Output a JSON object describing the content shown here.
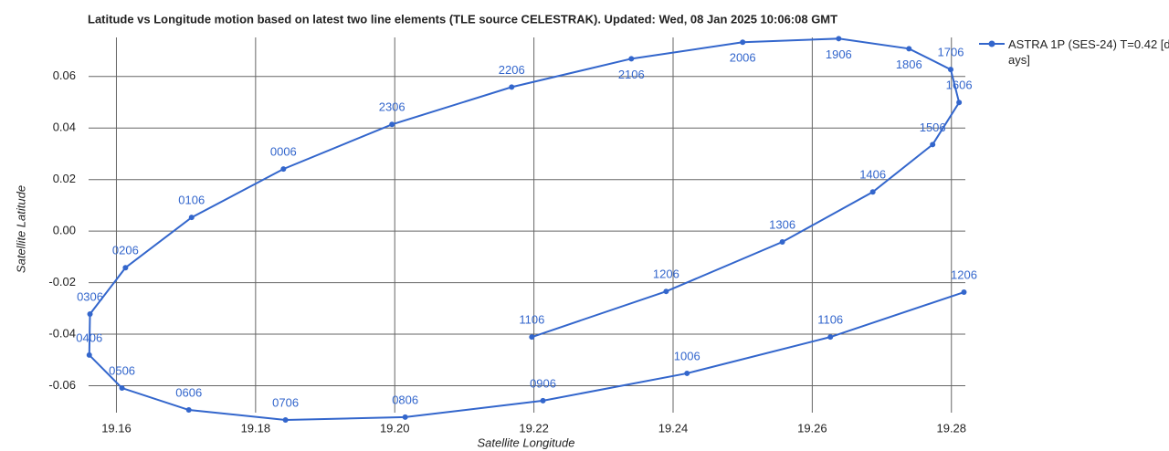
{
  "chart_data": {
    "type": "line",
    "title": "Latitude vs Longitude motion based on latest two line elements (TLE source CELESTRAK). Updated: Wed, 08 Jan 2025 10:06:08 GMT",
    "x_label": "Satellite Longitude",
    "y_label": "Satellite Latitude",
    "x": [
      19.2197,
      19.239,
      19.2557,
      19.2687,
      19.2773,
      19.2811,
      19.2799,
      19.2739,
      19.2638,
      19.25,
      19.234,
      19.2168,
      19.1996,
      19.184,
      19.1708,
      19.1613,
      19.1562,
      19.1561,
      19.1608,
      19.1704,
      19.1843,
      19.2015,
      19.2213,
      19.242,
      19.2626,
      19.2818
    ],
    "series": [
      {
        "name": "ASTRA 1P (SES-24) T=0.42 [days]",
        "color": "#3366cc",
        "values": [
          -0.0411,
          -0.0234,
          -0.0042,
          0.0152,
          0.0336,
          0.0499,
          0.0627,
          0.0708,
          0.0747,
          0.0733,
          0.0669,
          0.0559,
          0.0414,
          0.0241,
          0.0053,
          -0.0142,
          -0.0322,
          -0.0481,
          -0.0609,
          -0.0694,
          -0.0733,
          -0.0722,
          -0.0658,
          -0.0552,
          -0.0411,
          -0.0237
        ],
        "labels": [
          "1106",
          "1206",
          "1306",
          "1406",
          "1506",
          "1606",
          "1706",
          "1806",
          "1906",
          "2006",
          "2106",
          "2206",
          "2306",
          "0006",
          "0106",
          "0206",
          "0306",
          "0406",
          "0506",
          "0606",
          "0706",
          "0806",
          "0906",
          "1006",
          "1106",
          "1206"
        ]
      }
    ],
    "xlim": [
      19.156,
      19.282
    ],
    "xticks": [
      19.16,
      19.18,
      {
        "value": 19.2,
        "label": "19.20"
      },
      19.22,
      19.24,
      19.26,
      19.28
    ],
    "ylim": [
      -0.074,
      0.078
    ],
    "yticks": [
      -0.06,
      -0.04,
      -0.02,
      {
        "value": 0,
        "label": "0.00"
      },
      0.02,
      0.04,
      0.06
    ],
    "grid": true,
    "legend": "right"
  }
}
